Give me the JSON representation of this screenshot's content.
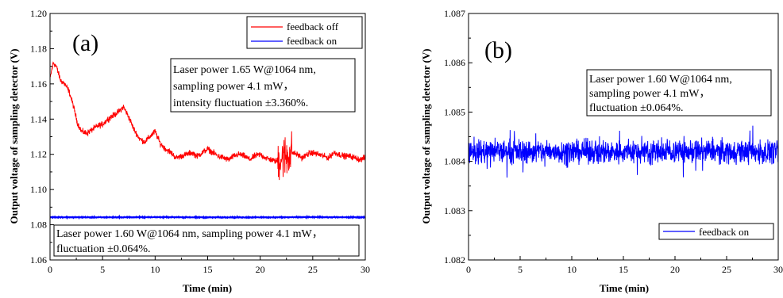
{
  "chart_data": [
    {
      "type": "line",
      "panel_label": "(a)",
      "xlabel": "Time (min)",
      "ylabel": "Output voltage of sampling detector (V)",
      "xlim": [
        0,
        30
      ],
      "ylim": [
        1.06,
        1.2
      ],
      "xticks": [
        "0",
        "5",
        "10",
        "15",
        "20",
        "25",
        "30"
      ],
      "yticks": [
        "1.06",
        "1.08",
        "1.10",
        "1.12",
        "1.14",
        "1.16",
        "1.18",
        "1.20"
      ],
      "legend_position": "top-right",
      "series": [
        {
          "name": "feedback off",
          "color": "#ff0000",
          "x": [
            0,
            0.3,
            0.6,
            1.0,
            1.4,
            1.8,
            2.2,
            2.6,
            3.0,
            3.5,
            4.0,
            4.5,
            5.0,
            5.5,
            6.0,
            6.5,
            7.0,
            7.5,
            8.0,
            8.5,
            9.0,
            9.5,
            10.0,
            10.5,
            11.0,
            11.5,
            12.0,
            12.5,
            13.0,
            13.5,
            14.0,
            14.5,
            15.0,
            15.5,
            16.0,
            16.5,
            17.0,
            17.5,
            18.0,
            18.5,
            19.0,
            19.5,
            20.0,
            20.5,
            21.0,
            21.5,
            22.0,
            22.5,
            23.0,
            23.5,
            24.0,
            24.5,
            25.0,
            25.5,
            26.0,
            26.5,
            27.0,
            27.5,
            28.0,
            28.5,
            29.0,
            29.5,
            30.0
          ],
          "y": [
            1.163,
            1.172,
            1.17,
            1.162,
            1.16,
            1.156,
            1.148,
            1.138,
            1.133,
            1.132,
            1.134,
            1.136,
            1.137,
            1.14,
            1.142,
            1.144,
            1.147,
            1.141,
            1.134,
            1.129,
            1.127,
            1.13,
            1.133,
            1.126,
            1.123,
            1.121,
            1.118,
            1.119,
            1.12,
            1.121,
            1.119,
            1.121,
            1.123,
            1.121,
            1.119,
            1.118,
            1.117,
            1.119,
            1.12,
            1.119,
            1.117,
            1.119,
            1.12,
            1.118,
            1.117,
            1.116,
            1.118,
            1.119,
            1.121,
            1.12,
            1.118,
            1.12,
            1.121,
            1.12,
            1.119,
            1.118,
            1.121,
            1.12,
            1.119,
            1.119,
            1.118,
            1.117,
            1.118
          ]
        },
        {
          "name": "feedback on",
          "color": "#0000ff",
          "x": [
            0,
            5,
            10,
            15,
            20,
            25,
            30
          ],
          "y": [
            1.0843,
            1.0842,
            1.0843,
            1.0842,
            1.0842,
            1.0843,
            1.0842
          ]
        }
      ],
      "annotations": [
        [
          "Laser power 1.65 W@1064 nm,",
          "sampling power 4.1 mW，",
          "intensity fluctuation ±3.360%."
        ],
        [
          "Laser power 1.60 W@1064 nm, sampling power 4.1 mW，",
          "fluctuation ±0.064%."
        ]
      ]
    },
    {
      "type": "line",
      "panel_label": "(b)",
      "xlabel": "Time (min)",
      "ylabel": "Output voltage of sampling detector (V)",
      "xlim": [
        0,
        30
      ],
      "ylim": [
        1.082,
        1.087
      ],
      "xticks": [
        "0",
        "5",
        "10",
        "15",
        "20",
        "25",
        "30"
      ],
      "yticks": [
        "1.082",
        "1.083",
        "1.084",
        "1.085",
        "1.086",
        "1.087"
      ],
      "legend_position": "bottom-right",
      "series": [
        {
          "name": "feedback on",
          "color": "#0000ff",
          "x": [
            0,
            30
          ],
          "y": [
            1.0842,
            1.0842
          ],
          "noise_amplitude": 0.00035
        }
      ],
      "annotations": [
        [
          "Laser power 1.60 W@1064 nm,",
          "sampling power 4.1 mW，",
          "fluctuation ±0.064%."
        ]
      ]
    }
  ]
}
